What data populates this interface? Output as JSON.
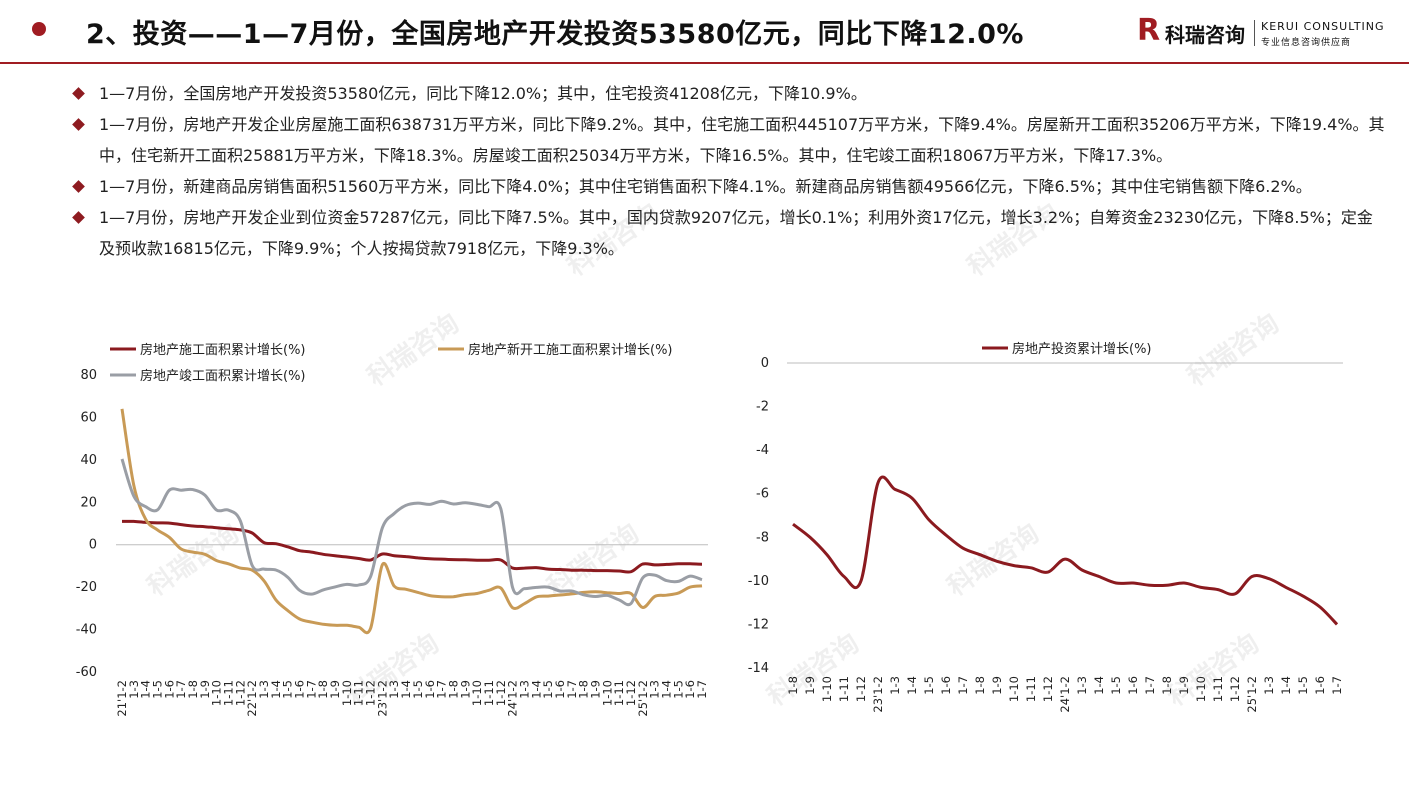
{
  "header": {
    "title": "2、投资——1—7月份，全国房地产开发投资53580亿元，同比下降12.0%",
    "brand_cn": "科瑞咨询",
    "brand_en": "KERUI CONSULTING",
    "brand_sub": "专业信息咨询供应商"
  },
  "bullets": [
    "1—7月份，全国房地产开发投资53580亿元，同比下降12.0%；其中，住宅投资41208亿元，下降10.9%。",
    "1—7月份，房地产开发企业房屋施工面积638731万平方米，同比下降9.2%。其中，住宅施工面积445107万平方米，下降9.4%。房屋新开工面积35206万平方米，下降19.4%。其中，住宅新开工面积25881万平方米，下降18.3%。房屋竣工面积25034万平方米，下降16.5%。其中，住宅竣工面积18067万平方米，下降17.3%。",
    "1—7月份，新建商品房销售面积51560万平方米，同比下降4.0%；其中住宅销售面积下降4.1%。新建商品房销售额49566亿元，下降6.5%；其中住宅销售额下降6.2%。",
    "1—7月份，房地产开发企业到位资金57287亿元，同比下降7.5%。其中，国内贷款9207亿元，增长0.1%；利用外资17亿元，增长3.2%；自筹资金23230亿元，下降8.5%；定金及预收款16815亿元，下降9.9%；个人按揭贷款7918亿元，下降9.3%。"
  ],
  "watermark": "科瑞咨询",
  "chart_data": [
    {
      "type": "line",
      "categories": [
        "21'1-2",
        "1-3",
        "1-4",
        "1-5",
        "1-6",
        "1-7",
        "1-8",
        "1-9",
        "1-10",
        "1-11",
        "1-12",
        "22'1-2",
        "1-3",
        "1-4",
        "1-5",
        "1-6",
        "1-7",
        "1-8",
        "1-9",
        "1-10",
        "1-11",
        "1-12",
        "23'1-2",
        "1-3",
        "1-4",
        "1-5",
        "1-6",
        "1-7",
        "1-8",
        "1-9",
        "1-10",
        "1-11",
        "1-12",
        "24'1-2",
        "1-3",
        "1-4",
        "1-5",
        "1-6",
        "1-7",
        "1-8",
        "1-9",
        "1-10",
        "1-11",
        "1-12",
        "25'1-2",
        "1-3",
        "1-4",
        "1-5",
        "1-6",
        "1-7"
      ],
      "ylim": [
        -60,
        80
      ],
      "yticks": [
        80,
        60,
        40,
        20,
        0,
        -20,
        -40,
        -60
      ],
      "legend_position": "top",
      "series": [
        {
          "name": "房地产施工面积累计增长(%)",
          "color": "#8b1a1f",
          "values": [
            11.0,
            11.0,
            10.5,
            10.3,
            10.2,
            9.5,
            8.8,
            8.5,
            8.0,
            7.5,
            7.0,
            5.5,
            1.0,
            0.5,
            -1.0,
            -2.8,
            -3.5,
            -4.5,
            -5.2,
            -5.8,
            -6.5,
            -7.2,
            -4.4,
            -5.2,
            -5.6,
            -6.2,
            -6.6,
            -6.8,
            -7.0,
            -7.1,
            -7.3,
            -7.3,
            -7.2,
            -11.0,
            -11.0,
            -10.8,
            -11.5,
            -11.7,
            -12.0,
            -12.0,
            -12.2,
            -12.2,
            -12.4,
            -12.7,
            -9.1,
            -9.5,
            -9.3,
            -9.0,
            -9.0,
            -9.2
          ]
        },
        {
          "name": "房地产新开工施工面积累计增长(%)",
          "color": "#c89a56",
          "values": [
            64.0,
            28.0,
            12.0,
            7.0,
            3.5,
            -2.0,
            -3.5,
            -4.5,
            -7.5,
            -9.0,
            -11.0,
            -12.0,
            -17.0,
            -26.0,
            -31.0,
            -35.0,
            -36.5,
            -37.5,
            -38.0,
            -38.0,
            -38.9,
            -39.4,
            -9.4,
            -19.5,
            -21.0,
            -22.5,
            -24.0,
            -24.5,
            -24.5,
            -23.5,
            -23.0,
            -21.5,
            -20.4,
            -29.7,
            -27.8,
            -24.6,
            -24.2,
            -23.7,
            -23.2,
            -22.5,
            -22.2,
            -22.6,
            -23.0,
            -23.0,
            -29.6,
            -24.4,
            -23.8,
            -22.8,
            -20.0,
            -19.4
          ]
        },
        {
          "name": "房地产竣工面积累计增长(%)",
          "color": "#9a9ea5",
          "values": [
            40.4,
            22.9,
            17.9,
            16.4,
            25.7,
            25.7,
            26.0,
            23.4,
            16.3,
            16.3,
            11.2,
            -9.8,
            -11.5,
            -11.9,
            -15.3,
            -21.5,
            -23.3,
            -21.3,
            -19.9,
            -18.7,
            -19.0,
            -15.0,
            8.0,
            14.7,
            18.6,
            19.6,
            19.0,
            20.5,
            19.2,
            19.8,
            19.0,
            17.9,
            17.0,
            -20.2,
            -20.7,
            -20.1,
            -20.0,
            -21.8,
            -21.8,
            -23.6,
            -24.4,
            -23.9,
            -26.0,
            -27.7,
            -15.6,
            -14.3,
            -16.9,
            -17.3,
            -14.8,
            -16.5
          ]
        }
      ]
    },
    {
      "type": "line",
      "categories": [
        "1-8",
        "1-9",
        "1-10",
        "1-11",
        "1-12",
        "23'1-2",
        "1-3",
        "1-4",
        "1-5",
        "1-6",
        "1-7",
        "1-8",
        "1-9",
        "1-10",
        "1-11",
        "1-12",
        "24'1-2",
        "1-3",
        "1-4",
        "1-5",
        "1-6",
        "1-7",
        "1-8",
        "1-9",
        "1-10",
        "1-11",
        "1-12",
        "25'1-2",
        "1-3",
        "1-4",
        "1-5",
        "1-6",
        "1-7"
      ],
      "ylim": [
        -14,
        0
      ],
      "yticks": [
        0,
        -2,
        -4,
        -6,
        -8,
        -10,
        -12,
        -14
      ],
      "legend_position": "top",
      "series": [
        {
          "name": "房地产投资累计增长(%)",
          "color": "#8b1a1f",
          "values": [
            -7.4,
            -8.0,
            -8.8,
            -9.8,
            -10.0,
            -5.5,
            -5.8,
            -6.2,
            -7.2,
            -7.9,
            -8.5,
            -8.8,
            -9.1,
            -9.3,
            -9.4,
            -9.6,
            -9.0,
            -9.5,
            -9.8,
            -10.1,
            -10.1,
            -10.2,
            -10.2,
            -10.1,
            -10.3,
            -10.4,
            -10.6,
            -9.8,
            -9.9,
            -10.3,
            -10.7,
            -11.2,
            -12.0
          ]
        }
      ]
    }
  ]
}
